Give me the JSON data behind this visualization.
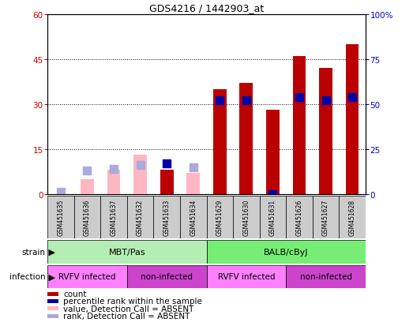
{
  "title": "GDS4216 / 1442903_at",
  "samples": [
    "GSM451635",
    "GSM451636",
    "GSM451637",
    "GSM451632",
    "GSM451633",
    "GSM451634",
    "GSM451629",
    "GSM451630",
    "GSM451631",
    "GSM451626",
    "GSM451627",
    "GSM451628"
  ],
  "count_values": [
    0,
    5,
    8,
    13,
    8,
    7,
    35,
    37,
    28,
    46,
    42,
    50
  ],
  "count_absent": [
    true,
    true,
    true,
    true,
    false,
    true,
    false,
    false,
    false,
    false,
    false,
    false
  ],
  "rank_values": [
    1,
    13,
    14,
    16,
    17,
    15,
    52,
    52,
    0,
    54,
    52,
    54
  ],
  "rank_absent": [
    true,
    true,
    true,
    true,
    false,
    true,
    false,
    false,
    false,
    false,
    false,
    false
  ],
  "ylim_left": [
    0,
    60
  ],
  "ylim_right": [
    0,
    100
  ],
  "yticks_left": [
    0,
    15,
    30,
    45,
    60
  ],
  "yticks_right": [
    0,
    25,
    50,
    75,
    100
  ],
  "strain_groups": [
    {
      "label": "MBT/Pas",
      "start": 0,
      "end": 6,
      "color": "#B4EEB4"
    },
    {
      "label": "BALB/cByJ",
      "start": 6,
      "end": 12,
      "color": "#76EE76"
    }
  ],
  "infection_groups": [
    {
      "label": "RVFV infected",
      "start": 0,
      "end": 3,
      "color": "#FF80FF"
    },
    {
      "label": "non-infected",
      "start": 3,
      "end": 6,
      "color": "#CC44CC"
    },
    {
      "label": "RVFV infected",
      "start": 6,
      "end": 9,
      "color": "#FF80FF"
    },
    {
      "label": "non-infected",
      "start": 9,
      "end": 12,
      "color": "#CC44CC"
    }
  ],
  "count_bar_width": 0.5,
  "rank_marker_size": 50,
  "count_color_present": "#BB0000",
  "count_color_absent": "#FFB6C1",
  "rank_color_present": "#0000AA",
  "rank_color_absent": "#AAAADD",
  "bg_color": "#FFFFFF",
  "grid_color": "#000000",
  "ylabel_left_color": "#CC0000",
  "ylabel_right_color": "#0000CC",
  "legend_items": [
    {
      "color": "#BB0000",
      "label": "count"
    },
    {
      "color": "#0000AA",
      "label": "percentile rank within the sample"
    },
    {
      "color": "#FFB6C1",
      "label": "value, Detection Call = ABSENT"
    },
    {
      "color": "#AAAADD",
      "label": "rank, Detection Call = ABSENT"
    }
  ]
}
